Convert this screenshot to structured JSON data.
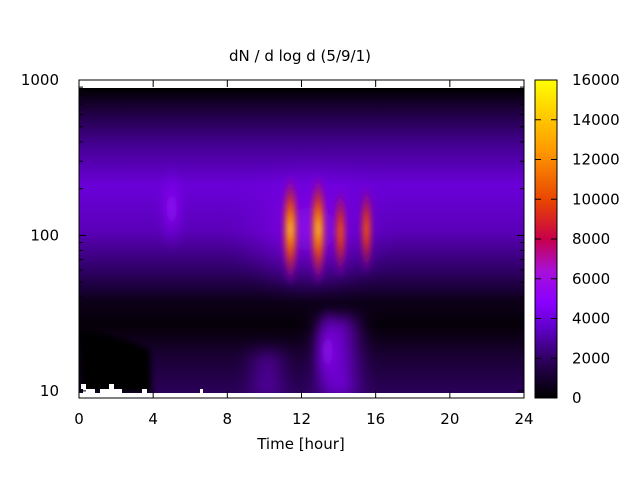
{
  "chart_data": {
    "type": "heatmap",
    "title": "dN / d log d (5/9/1)",
    "xlabel": "Time [hour]",
    "ylabel": "",
    "xlim": [
      0,
      24
    ],
    "ylim": [
      9,
      1000
    ],
    "y_scale": "log",
    "x_ticks": [
      "0",
      "4",
      "8",
      "12",
      "16",
      "20",
      "24"
    ],
    "y_ticks": [
      "10",
      "100",
      "1000"
    ],
    "colorbar": {
      "range": [
        0,
        16000
      ],
      "ticks": [
        "0",
        "2000",
        "4000",
        "6000",
        "8000",
        "10000",
        "12000",
        "14000",
        "16000"
      ],
      "colormap": [
        "#000000",
        "#3a007a",
        "#8a00ff",
        "#b020d0",
        "#d02a00",
        "#ff7a00",
        "#ffd400",
        "#ffff00"
      ]
    },
    "bands": [
      {
        "time": 11.4,
        "diameter": 110,
        "value": 14000
      },
      {
        "time": 12.9,
        "diameter": 110,
        "value": 12000
      },
      {
        "time": 14.1,
        "diameter": 105,
        "value": 10000
      },
      {
        "time": 15.5,
        "diameter": 110,
        "value": 9000
      },
      {
        "time": 13.4,
        "diameter": 18,
        "value": 4500
      },
      {
        "time": 5.0,
        "diameter": 150,
        "value": 3500
      }
    ],
    "grid": false,
    "legend": "colorbar-right"
  }
}
